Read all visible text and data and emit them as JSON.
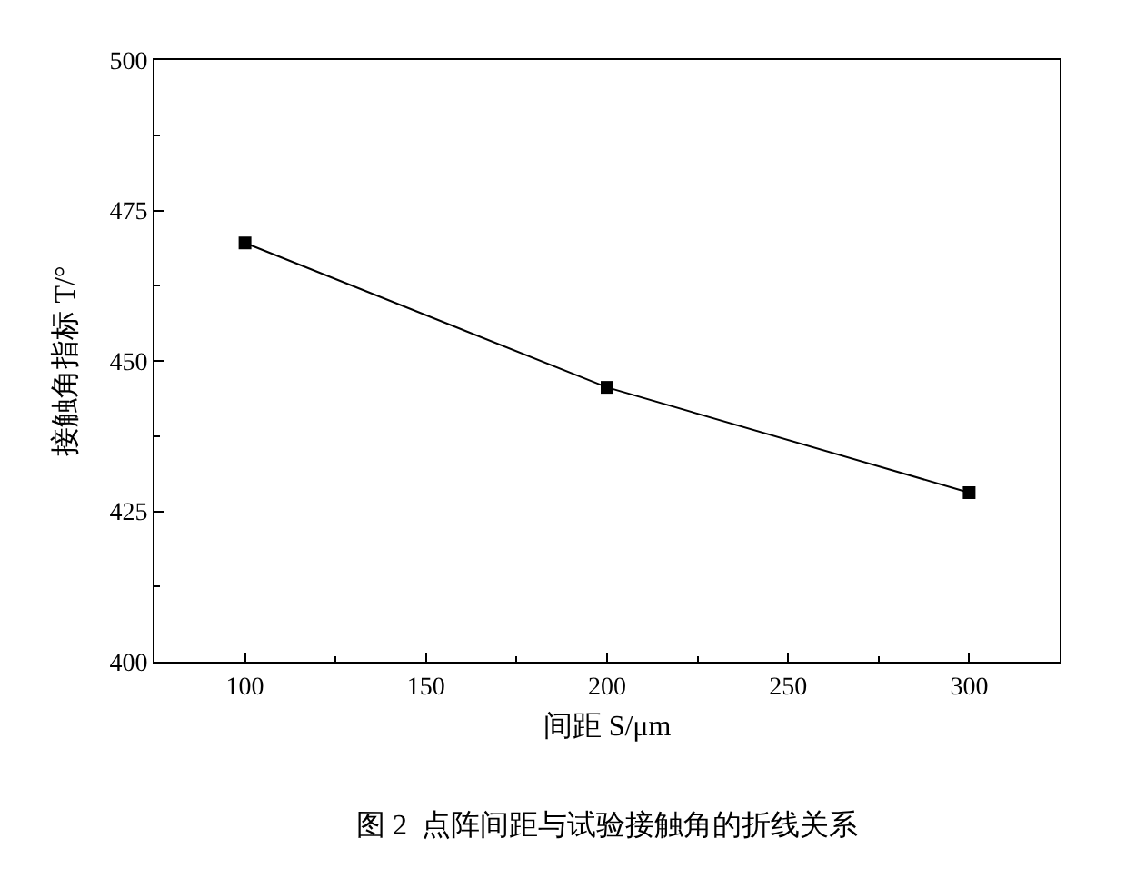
{
  "chart_data": {
    "type": "line",
    "x": [
      100,
      200,
      300
    ],
    "series": [
      {
        "color": "#000000",
        "values": [
          469.6,
          445.6,
          428.1
        ]
      }
    ],
    "xlabel": "间距 S/μm",
    "ylabel": "接触角指标 T/°",
    "xlim": [
      75,
      325
    ],
    "xticks": [
      100,
      {
        "value": 125,
        "label": null
      },
      150,
      {
        "value": 175,
        "label": null
      },
      200,
      {
        "value": 225,
        "label": null
      },
      250,
      {
        "value": 275,
        "label": null
      },
      300
    ],
    "ylim": [
      400,
      500
    ],
    "yticks": [
      400,
      {
        "value": 412.5,
        "label": null
      },
      425,
      {
        "value": 437.5,
        "label": null
      },
      450,
      {
        "value": 462.5,
        "label": null
      },
      475,
      {
        "value": 487.5,
        "label": null
      },
      500
    ],
    "marker": "square",
    "line_style": "solid",
    "grid": false,
    "annotations": [
      "图 2  点阵间距与试验接触角的折线关系"
    ]
  }
}
